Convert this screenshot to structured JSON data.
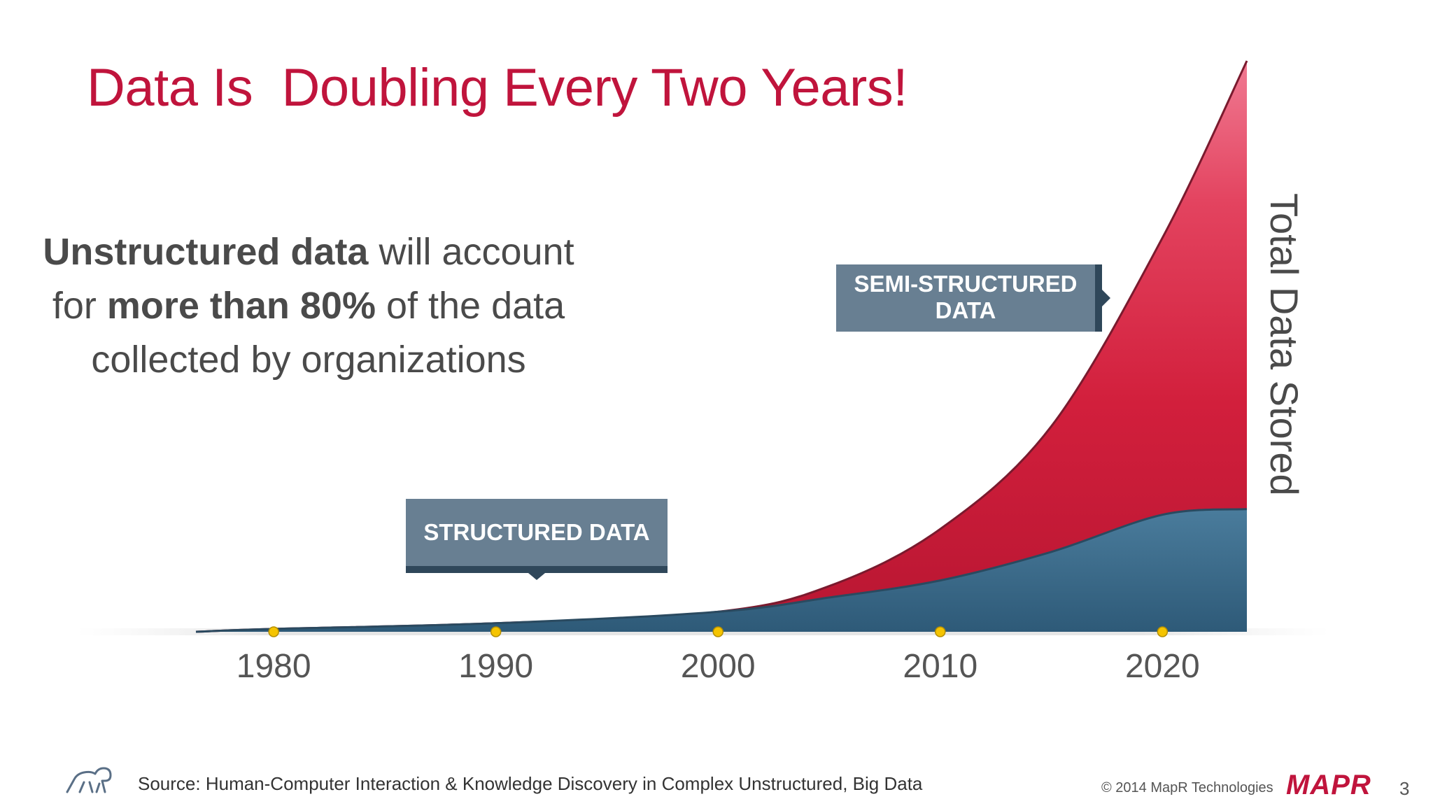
{
  "slide": {
    "title": "Data Is  Doubling Every Two Years!",
    "callout": {
      "bold1": "Unstructured data",
      "text1": " will account",
      "text2": "for ",
      "bold2": "more than 80%",
      "text3": " of the data",
      "text4": "collected by organizations"
    },
    "source": "Source: Human-Computer Interaction & Knowledge Discovery in Complex Unstructured, Big Data",
    "copyright": "© 2014 MapR Technologies",
    "brand": "MAPR",
    "page_number": "3",
    "logo_icon": "elephant-logo-icon"
  },
  "chart_data": {
    "type": "area",
    "ylabel": "Total Data Stored",
    "x_ticks": [
      1980,
      1990,
      2000,
      2010,
      2020
    ],
    "x_range": [
      1976.5,
      2023.8
    ],
    "y_range": [
      0,
      100
    ],
    "annotations": [
      "SEMI-STRUCTURED DATA",
      "STRUCTURED DATA"
    ],
    "series": [
      {
        "name": "STRUCTURED DATA",
        "color": "#3f6f8e",
        "x": [
          1976.5,
          1980,
          1990,
          2000,
          2005,
          2010,
          2015,
          2020,
          2023.8
        ],
        "y": [
          0,
          0.5,
          1.5,
          3.5,
          6,
          9,
          14,
          20.5,
          21.5
        ]
      },
      {
        "name": "SEMI-STRUCTURED DATA",
        "color": "#d21f3c",
        "x": [
          1976.5,
          1980,
          1990,
          2000,
          2005,
          2010,
          2015,
          2020,
          2023.8
        ],
        "y": [
          0,
          0.5,
          1.5,
          3.5,
          8,
          18,
          36,
          69,
          100
        ]
      }
    ],
    "marker_color": "#f5c400"
  }
}
